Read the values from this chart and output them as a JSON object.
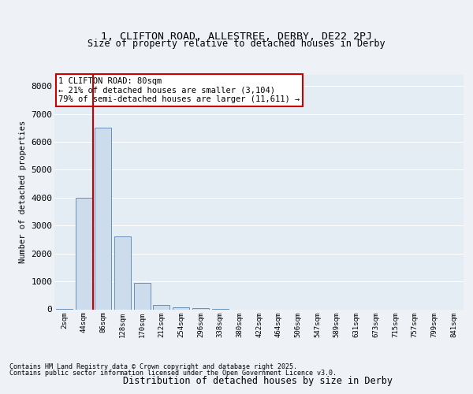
{
  "title1": "1, CLIFTON ROAD, ALLESTREE, DERBY, DE22 2PJ",
  "title2": "Size of property relative to detached houses in Derby",
  "xlabel": "Distribution of detached houses by size in Derby",
  "ylabel": "Number of detached properties",
  "bar_labels": [
    "2sqm",
    "44sqm",
    "86sqm",
    "128sqm",
    "170sqm",
    "212sqm",
    "254sqm",
    "296sqm",
    "338sqm",
    "380sqm",
    "422sqm",
    "464sqm",
    "506sqm",
    "547sqm",
    "589sqm",
    "631sqm",
    "673sqm",
    "715sqm",
    "757sqm",
    "799sqm",
    "841sqm"
  ],
  "bar_values": [
    5,
    4000,
    6500,
    2600,
    950,
    150,
    80,
    50,
    10,
    0,
    0,
    0,
    0,
    0,
    0,
    0,
    0,
    0,
    0,
    0,
    0
  ],
  "bar_color": "#ccdcec",
  "bar_edge_color": "#6890b8",
  "background_color": "#eef2f6",
  "plot_bg_color": "#e4ecf4",
  "grid_color": "#ffffff",
  "vline_color": "#cc0000",
  "vline_pos": 1.5,
  "annotation_text": "1 CLIFTON ROAD: 80sqm\n← 21% of detached houses are smaller (3,104)\n79% of semi-detached houses are larger (11,611) →",
  "annotation_box_color": "#ffffff",
  "annotation_border_color": "#cc0000",
  "ylim": [
    0,
    8400
  ],
  "yticks": [
    0,
    1000,
    2000,
    3000,
    4000,
    5000,
    6000,
    7000,
    8000
  ],
  "footer1": "Contains HM Land Registry data © Crown copyright and database right 2025.",
  "footer2": "Contains public sector information licensed under the Open Government Licence v3.0."
}
